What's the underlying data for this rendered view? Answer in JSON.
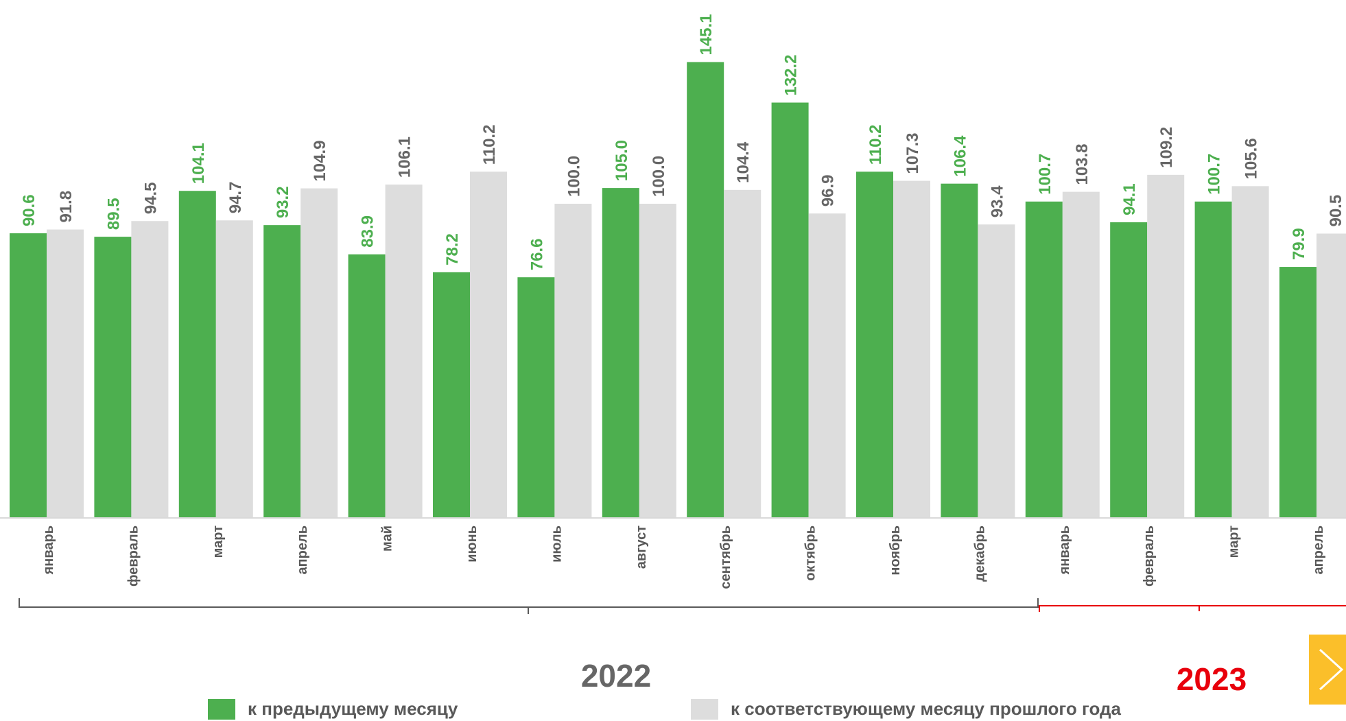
{
  "chart_data": {
    "type": "bar",
    "categories": [
      "январь",
      "февраль",
      "март",
      "апрель",
      "май",
      "июнь",
      "июль",
      "август",
      "сентябрь",
      "октябрь",
      "ноябрь",
      "декабрь",
      "январь",
      "февраль",
      "март",
      "апрель"
    ],
    "series": [
      {
        "name": "к предыдущему месяцу",
        "color": "#4daf4f",
        "values": [
          90.6,
          89.5,
          104.1,
          93.2,
          83.9,
          78.2,
          76.6,
          105.0,
          145.1,
          132.2,
          110.2,
          106.4,
          100.7,
          94.1,
          100.7,
          79.9
        ],
        "labels": [
          "90.6",
          "89.5",
          "104.1",
          "93.2",
          "83.9",
          "78.2",
          "76.6",
          "105.0",
          "145.1",
          "132.2",
          "110.2",
          "106.4",
          "100.7",
          "94.1",
          "100.7",
          "79.9"
        ]
      },
      {
        "name": "к соответствующему месяцу прошлого года",
        "color": "#dddddd",
        "values": [
          91.8,
          94.5,
          94.7,
          104.9,
          106.1,
          110.2,
          100.0,
          100.0,
          104.4,
          96.9,
          107.3,
          93.4,
          103.8,
          109.2,
          105.6,
          90.5
        ],
        "labels": [
          "91.8",
          "94.5",
          "94.7",
          "104.9",
          "106.1",
          "110.2",
          "100.0",
          "100.0",
          "104.4",
          "96.9",
          "107.3",
          "93.4",
          "103.8",
          "109.2",
          "105.6",
          "90.5"
        ]
      }
    ],
    "groups": [
      {
        "label": "2022",
        "color": "#666666",
        "from": 0,
        "to": 11
      },
      {
        "label": "2023",
        "color": "#e8000b",
        "from": 12,
        "to": 15
      }
    ],
    "legend": "bottom",
    "grid": false,
    "ylim": [
      0,
      150
    ]
  },
  "nav": {
    "next_icon": "chevron-right-icon"
  }
}
